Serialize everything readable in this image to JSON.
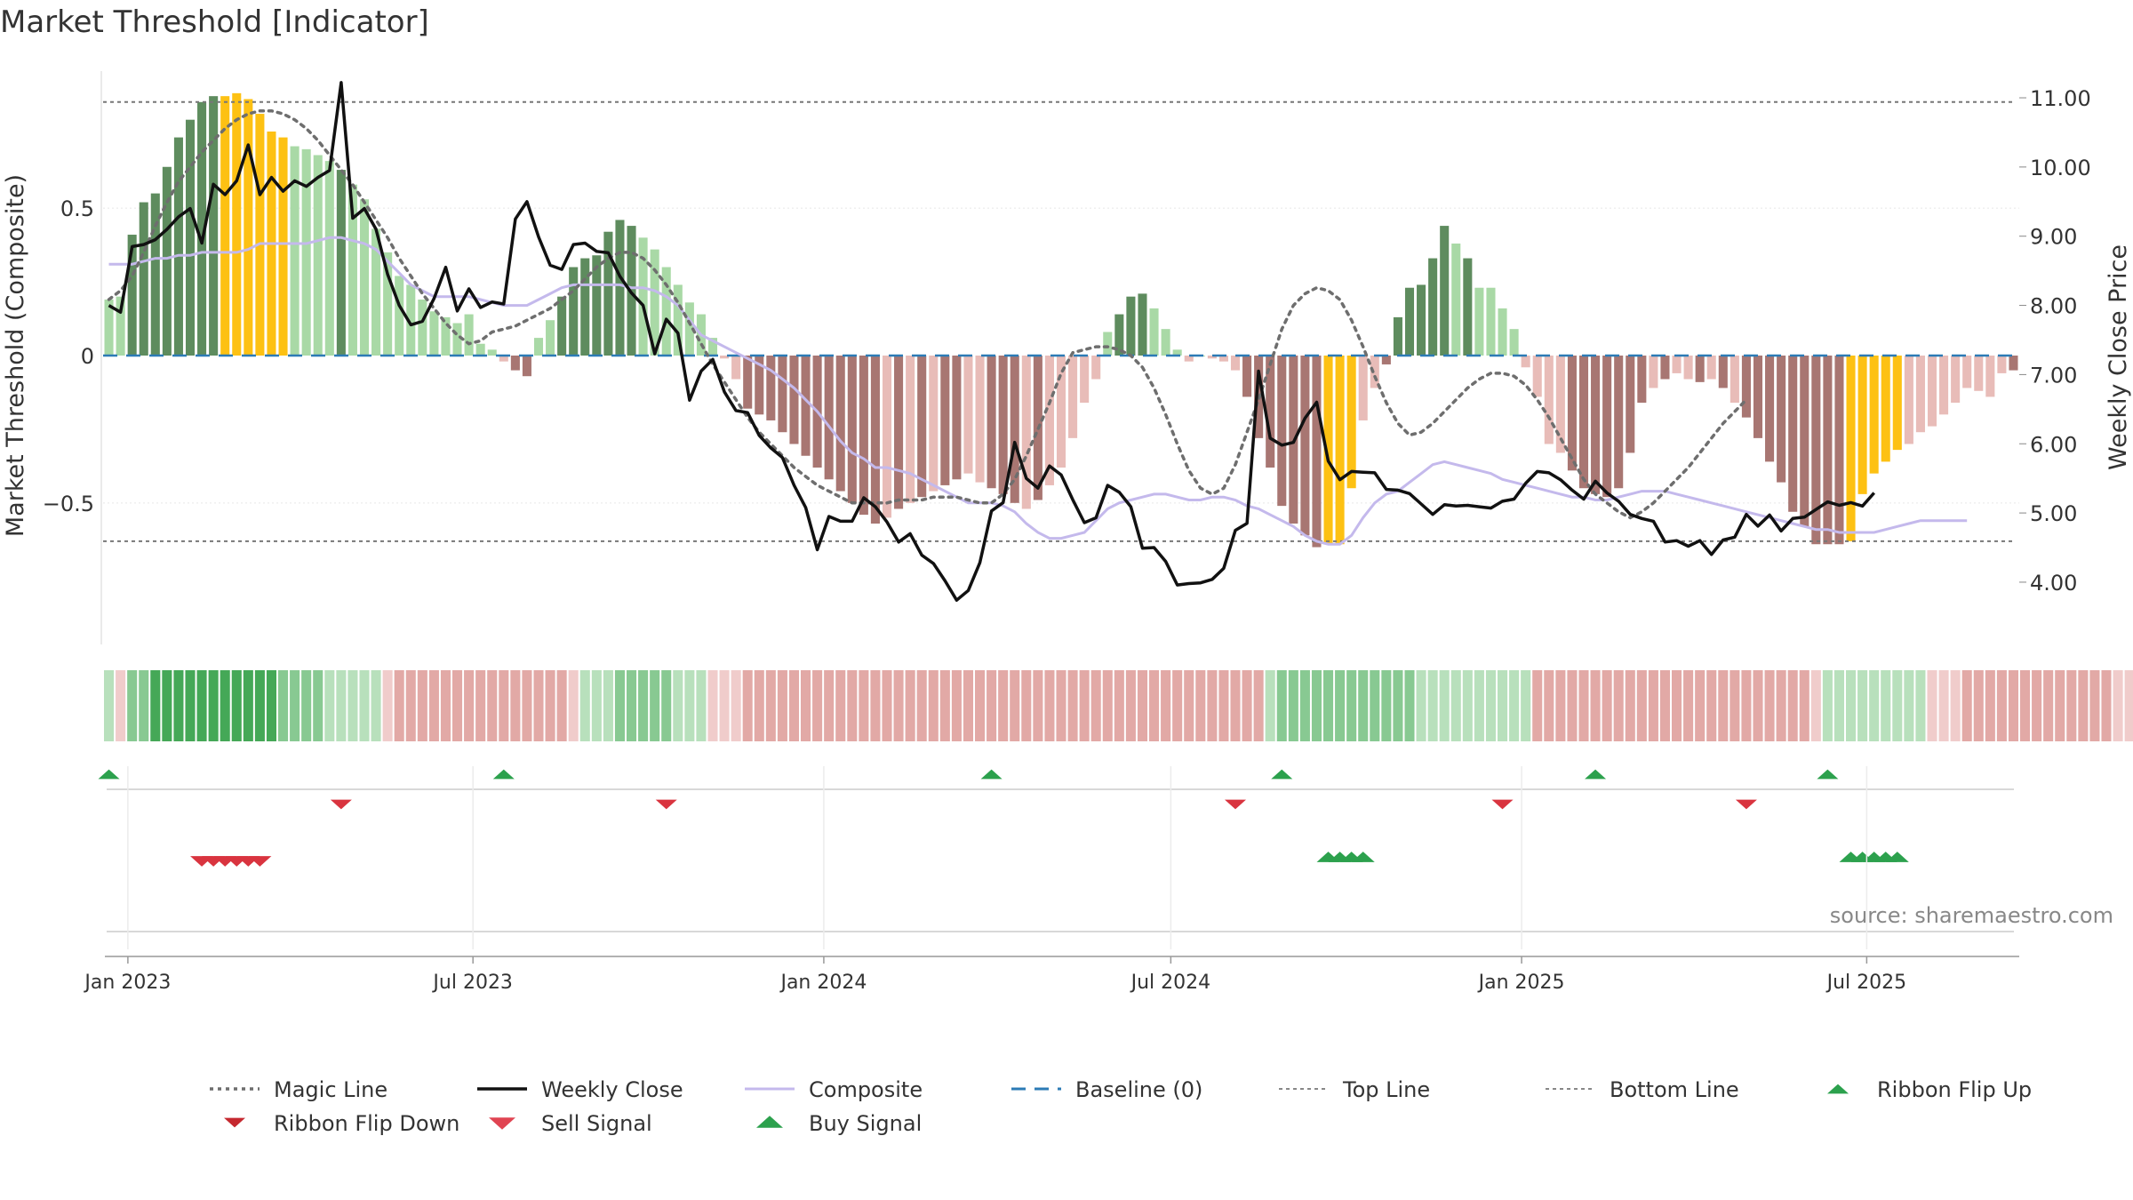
{
  "chart_data": {
    "type": "bar",
    "title": "Market Threshold [Indicator]",
    "ylabel_left": "Market Threshold (Composite)",
    "ylabel_right": "Weekly Close Price",
    "source": "source: sharemaestro.com",
    "x_ticks": [
      "Jan 2023",
      "Jul 2023",
      "Jan 2024",
      "Jul 2024",
      "Jan 2025",
      "Jul 2025"
    ],
    "x_range": [
      "2022-12-19",
      "2025-09-19"
    ],
    "ylim_left": [
      -0.98,
      0.98
    ],
    "yticks_left": [
      {
        "v": 0.5,
        "label": "0.5"
      },
      {
        "v": 0,
        "label": "0"
      },
      {
        "v": -0.5,
        "label": "−0.5"
      }
    ],
    "ylim_right": [
      3.1,
      11.45
    ],
    "yticks_right": [
      {
        "v": 11,
        "label": "11.00"
      },
      {
        "v": 10,
        "label": "10.00"
      },
      {
        "v": 9,
        "label": "9.00"
      },
      {
        "v": 8,
        "label": "8.00"
      },
      {
        "v": 7,
        "label": "7.00"
      },
      {
        "v": 6,
        "label": "6.00"
      },
      {
        "v": 5,
        "label": "5.00"
      },
      {
        "v": 4,
        "label": "4.00"
      }
    ],
    "top_line": 0.86,
    "bottom_line": -0.63,
    "colors": {
      "strong_green": "#5e8c5e",
      "light_green": "#a9d9a6",
      "strong_red": "#a87672",
      "light_red": "#e8bcb8",
      "extreme": "#fdc113",
      "close": "#111111",
      "composite": "#c4b9ec",
      "magic": "#6e6e6e",
      "baseline": "#2c7bb6",
      "buy": "#2ca14d",
      "sell": "#d9343f"
    },
    "bars": [
      0.19,
      0.2,
      0.41,
      0.52,
      0.55,
      0.64,
      0.74,
      0.8,
      0.86,
      0.88,
      0.88,
      0.89,
      0.87,
      0.82,
      0.76,
      0.74,
      0.71,
      0.7,
      0.68,
      0.66,
      0.63,
      0.58,
      0.53,
      0.43,
      0.35,
      0.27,
      0.24,
      0.19,
      0.15,
      0.13,
      0.11,
      0.14,
      0.04,
      0.02,
      -0.02,
      -0.05,
      -0.07,
      0.06,
      0.12,
      0.2,
      0.3,
      0.33,
      0.34,
      0.42,
      0.46,
      0.44,
      0.4,
      0.36,
      0.3,
      0.24,
      0.18,
      0.14,
      0.06,
      -0.01,
      -0.08,
      -0.18,
      -0.2,
      -0.22,
      -0.26,
      -0.3,
      -0.34,
      -0.38,
      -0.42,
      -0.46,
      -0.5,
      -0.54,
      -0.57,
      -0.55,
      -0.52,
      -0.5,
      -0.48,
      -0.46,
      -0.44,
      -0.42,
      -0.4,
      -0.43,
      -0.45,
      -0.47,
      -0.5,
      -0.52,
      -0.49,
      -0.44,
      -0.38,
      -0.28,
      -0.16,
      -0.08,
      0.08,
      0.14,
      0.2,
      0.21,
      0.16,
      0.09,
      0.02,
      -0.02,
      0.0,
      -0.01,
      -0.02,
      -0.05,
      -0.14,
      -0.28,
      -0.38,
      -0.51,
      -0.57,
      -0.61,
      -0.65,
      -0.64,
      -0.64,
      -0.45,
      -0.22,
      -0.11,
      -0.03,
      0.13,
      0.23,
      0.24,
      0.33,
      0.44,
      0.38,
      0.33,
      0.23,
      0.23,
      0.16,
      0.09,
      -0.04,
      -0.14,
      -0.3,
      -0.33,
      -0.39,
      -0.45,
      -0.47,
      -0.48,
      -0.45,
      -0.33,
      -0.16,
      -0.11,
      -0.08,
      -0.06,
      -0.08,
      -0.09,
      -0.08,
      -0.11,
      -0.16,
      -0.21,
      -0.28,
      -0.36,
      -0.43,
      -0.53,
      -0.58,
      -0.64,
      -0.64,
      -0.64,
      -0.63,
      -0.47,
      -0.4,
      -0.36,
      -0.32,
      -0.3,
      -0.26,
      -0.24,
      -0.2,
      -0.16,
      -0.11,
      -0.12,
      -0.14,
      -0.06,
      -0.05
    ],
    "extreme_bars": [
      10,
      11,
      12,
      13,
      14,
      15,
      105,
      106,
      107,
      150,
      151,
      152,
      153,
      154
    ],
    "strong_bars": [
      2,
      3,
      4,
      5,
      6,
      7,
      8,
      9,
      20,
      35,
      36,
      39,
      40,
      41,
      42,
      43,
      44,
      45,
      55,
      56,
      57,
      58,
      59,
      60,
      61,
      62,
      63,
      64,
      65,
      66,
      68,
      70,
      72,
      73,
      76,
      77,
      78,
      80,
      87,
      88,
      89,
      98,
      99,
      100,
      101,
      102,
      103,
      104,
      110,
      111,
      112,
      113,
      114,
      115,
      117,
      126,
      127,
      128,
      129,
      130,
      131,
      132,
      134,
      137,
      139,
      141,
      142,
      143,
      144,
      145,
      146,
      147,
      148,
      149,
      164,
      165
    ],
    "close": [
      8.0,
      7.9,
      8.85,
      8.88,
      8.95,
      9.1,
      9.28,
      9.4,
      8.9,
      9.75,
      9.6,
      9.8,
      10.32,
      9.6,
      9.85,
      9.65,
      9.8,
      9.72,
      9.85,
      9.95,
      11.22,
      9.26,
      9.4,
      9.1,
      8.45,
      8.0,
      7.72,
      7.77,
      8.1,
      8.55,
      7.92,
      8.24,
      7.97,
      8.05,
      8.02,
      9.25,
      9.5,
      8.99,
      8.58,
      8.52,
      8.88,
      8.9,
      8.78,
      8.76,
      8.42,
      8.18,
      8.0,
      7.3,
      7.8,
      7.6,
      6.63,
      7.05,
      7.22,
      6.75,
      6.48,
      6.45,
      6.12,
      5.94,
      5.8,
      5.4,
      5.08,
      4.47,
      4.95,
      4.88,
      4.88,
      5.22,
      5.09,
      4.87,
      4.58,
      4.7,
      4.39,
      4.27,
      4.02,
      3.74,
      3.88,
      4.28,
      5.03,
      5.15,
      6.02,
      5.5,
      5.36,
      5.68,
      5.55,
      5.19,
      4.86,
      4.93,
      5.4,
      5.3,
      5.09,
      4.49,
      4.5,
      4.3,
      3.96,
      3.98,
      3.99,
      4.04,
      4.2,
      4.75,
      4.85,
      7.05,
      6.08,
      5.98,
      6.02,
      6.37,
      6.6,
      5.75,
      5.48,
      5.6,
      5.59,
      5.58,
      5.34,
      5.33,
      5.28,
      5.13,
      4.98,
      5.12,
      5.1,
      5.11,
      5.09,
      5.07,
      5.17,
      5.2,
      5.43,
      5.6,
      5.58,
      5.48,
      5.33,
      5.2,
      5.46,
      5.29,
      5.17,
      4.98,
      4.92,
      4.88,
      4.58,
      4.6,
      4.52,
      4.6,
      4.4,
      4.61,
      4.65,
      4.98,
      4.81,
      4.97,
      4.74,
      4.92,
      4.94,
      5.05,
      5.16,
      5.11,
      5.15,
      5.1,
      5.29
    ],
    "composite": [
      0.31,
      0.31,
      0.31,
      0.32,
      0.33,
      0.33,
      0.34,
      0.34,
      0.35,
      0.35,
      0.35,
      0.35,
      0.36,
      0.38,
      0.38,
      0.38,
      0.38,
      0.38,
      0.39,
      0.4,
      0.4,
      0.39,
      0.38,
      0.36,
      0.32,
      0.28,
      0.24,
      0.22,
      0.2,
      0.2,
      0.2,
      0.2,
      0.19,
      0.18,
      0.17,
      0.17,
      0.17,
      0.19,
      0.21,
      0.23,
      0.24,
      0.24,
      0.24,
      0.24,
      0.24,
      0.23,
      0.23,
      0.22,
      0.2,
      0.17,
      0.12,
      0.07,
      0.05,
      0.03,
      0.01,
      -0.01,
      -0.03,
      -0.05,
      -0.08,
      -0.11,
      -0.15,
      -0.19,
      -0.24,
      -0.29,
      -0.33,
      -0.35,
      -0.38,
      -0.38,
      -0.39,
      -0.4,
      -0.42,
      -0.44,
      -0.46,
      -0.48,
      -0.5,
      -0.5,
      -0.5,
      -0.51,
      -0.53,
      -0.57,
      -0.6,
      -0.62,
      -0.62,
      -0.61,
      -0.6,
      -0.56,
      -0.52,
      -0.5,
      -0.49,
      -0.48,
      -0.47,
      -0.47,
      -0.48,
      -0.49,
      -0.49,
      -0.48,
      -0.48,
      -0.49,
      -0.51,
      -0.52,
      -0.54,
      -0.56,
      -0.58,
      -0.61,
      -0.63,
      -0.64,
      -0.64,
      -0.61,
      -0.55,
      -0.5,
      -0.47,
      -0.46,
      -0.43,
      -0.4,
      -0.37,
      -0.36,
      -0.37,
      -0.38,
      -0.39,
      -0.4,
      -0.42,
      -0.43,
      -0.44,
      -0.45,
      -0.46,
      -0.47,
      -0.48,
      -0.48,
      -0.49,
      -0.49,
      -0.48,
      -0.47,
      -0.46,
      -0.46,
      -0.46,
      -0.47,
      -0.48,
      -0.49,
      -0.5,
      -0.51,
      -0.52,
      -0.53,
      -0.54,
      -0.55,
      -0.56,
      -0.57,
      -0.58,
      -0.59,
      -0.59,
      -0.6,
      -0.6,
      -0.6,
      -0.6,
      -0.59,
      -0.58,
      -0.57,
      -0.56,
      -0.56,
      -0.56,
      -0.56,
      -0.56
    ],
    "magic": [
      0.19,
      0.22,
      0.27,
      0.35,
      0.44,
      0.52,
      0.59,
      0.64,
      0.69,
      0.73,
      0.77,
      0.8,
      0.82,
      0.83,
      0.83,
      0.82,
      0.8,
      0.77,
      0.73,
      0.68,
      0.63,
      0.58,
      0.52,
      0.46,
      0.4,
      0.33,
      0.27,
      0.21,
      0.16,
      0.11,
      0.07,
      0.04,
      0.05,
      0.08,
      0.09,
      0.1,
      0.12,
      0.14,
      0.16,
      0.19,
      0.22,
      0.26,
      0.3,
      0.33,
      0.35,
      0.35,
      0.33,
      0.29,
      0.24,
      0.18,
      0.11,
      0.04,
      -0.03,
      -0.09,
      -0.15,
      -0.21,
      -0.26,
      -0.3,
      -0.34,
      -0.38,
      -0.41,
      -0.44,
      -0.46,
      -0.48,
      -0.5,
      -0.5,
      -0.5,
      -0.5,
      -0.49,
      -0.49,
      -0.49,
      -0.48,
      -0.48,
      -0.48,
      -0.49,
      -0.5,
      -0.5,
      -0.47,
      -0.42,
      -0.34,
      -0.25,
      -0.16,
      -0.06,
      0.01,
      0.02,
      0.03,
      0.03,
      0.02,
      0.0,
      -0.04,
      -0.11,
      -0.2,
      -0.3,
      -0.39,
      -0.45,
      -0.47,
      -0.45,
      -0.37,
      -0.26,
      -0.15,
      -0.03,
      0.09,
      0.17,
      0.21,
      0.23,
      0.22,
      0.19,
      0.12,
      0.03,
      -0.07,
      -0.16,
      -0.23,
      -0.27,
      -0.26,
      -0.23,
      -0.19,
      -0.15,
      -0.11,
      -0.08,
      -0.06,
      -0.06,
      -0.07,
      -0.1,
      -0.15,
      -0.21,
      -0.28,
      -0.35,
      -0.42,
      -0.47,
      -0.5,
      -0.53,
      -0.55,
      -0.53,
      -0.5,
      -0.46,
      -0.42,
      -0.38,
      -0.33,
      -0.28,
      -0.23,
      -0.19,
      -0.15
    ],
    "ribbon": [
      1,
      -1,
      2,
      2,
      3,
      3,
      3,
      3,
      3,
      3,
      3,
      3,
      3,
      3,
      3,
      2,
      2,
      2,
      2,
      1,
      1,
      1,
      1,
      1,
      -1,
      -2,
      -2,
      -2,
      -2,
      -2,
      -2,
      -2,
      -2,
      -2,
      -2,
      -2,
      -2,
      -2,
      -2,
      -2,
      -1,
      1,
      1,
      1,
      2,
      2,
      2,
      2,
      2,
      1,
      1,
      1,
      -1,
      -1,
      -1,
      -2,
      -2,
      -2,
      -2,
      -2,
      -2,
      -2,
      -2,
      -2,
      -2,
      -2,
      -2,
      -2,
      -2,
      -2,
      -2,
      -2,
      -2,
      -2,
      -2,
      -2,
      -2,
      -2,
      -2,
      -2,
      -2,
      -2,
      -2,
      -2,
      -2,
      -2,
      -2,
      -2,
      -2,
      -2,
      -2,
      -2,
      -2,
      -2,
      -2,
      -2,
      -2,
      -2,
      -2,
      -2,
      1,
      2,
      2,
      2,
      2,
      2,
      2,
      2,
      2,
      2,
      2,
      2,
      2,
      1,
      1,
      1,
      1,
      1,
      1,
      1,
      1,
      1,
      1,
      -2,
      -2,
      -2,
      -2,
      -2,
      -2,
      -2,
      -2,
      -2,
      -2,
      -2,
      -2,
      -2,
      -2,
      -2,
      -2,
      -2,
      -2,
      -2,
      -2,
      -2,
      -2,
      -2,
      -2,
      -1,
      1,
      1,
      1,
      1,
      1,
      1,
      1,
      1,
      1,
      -1,
      -1,
      -1,
      -2,
      -2,
      -2,
      -2,
      -2,
      -2,
      -2,
      -2,
      -2,
      -2,
      -2,
      -2,
      -2,
      -1,
      -1,
      1,
      1,
      1,
      1,
      1,
      1,
      1,
      1,
      1,
      1,
      1,
      1,
      1,
      1,
      1,
      1,
      1,
      1,
      1,
      1
    ],
    "ribbon_flip_up": [
      0,
      34,
      76,
      101,
      128,
      148
    ],
    "ribbon_flip_down": [
      20,
      48,
      97,
      120,
      141
    ],
    "sell_signals": [
      8,
      9,
      10,
      11,
      12,
      13
    ],
    "buy_signals": [
      105,
      106,
      107,
      108,
      150,
      151,
      152,
      153,
      154
    ]
  },
  "legend": {
    "row1": [
      {
        "label": "Magic Line",
        "kind": "magic"
      },
      {
        "label": "Weekly Close",
        "kind": "close"
      },
      {
        "label": "Composite",
        "kind": "composite"
      },
      {
        "label": "Baseline (0)",
        "kind": "baseline"
      },
      {
        "label": "Top Line",
        "kind": "topline"
      },
      {
        "label": "Bottom Line",
        "kind": "bottomline"
      },
      {
        "label": "Ribbon Flip Up",
        "kind": "flipup"
      }
    ],
    "row2": [
      {
        "label": "Ribbon Flip Down",
        "kind": "flipdown"
      },
      {
        "label": "Sell Signal",
        "kind": "sell"
      },
      {
        "label": "Buy Signal",
        "kind": "buy"
      }
    ]
  }
}
